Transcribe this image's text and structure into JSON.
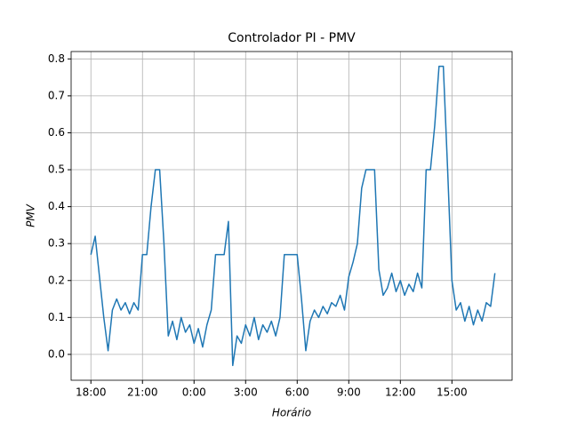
{
  "chart_data": {
    "type": "line",
    "title": "Controlador PI - PMV",
    "xlabel": "Horário",
    "ylabel": "PMV",
    "x": [
      0,
      0.25,
      0.5,
      0.75,
      1,
      1.25,
      1.5,
      1.75,
      2,
      2.25,
      2.5,
      2.75,
      3,
      3.25,
      3.5,
      3.75,
      4,
      4.25,
      4.5,
      4.75,
      5,
      5.25,
      5.5,
      5.75,
      6,
      6.25,
      6.5,
      6.75,
      7,
      7.25,
      7.5,
      7.75,
      8,
      8.25,
      8.5,
      8.75,
      9,
      9.25,
      9.5,
      9.75,
      10,
      10.25,
      10.5,
      10.75,
      11,
      11.25,
      11.5,
      11.75,
      12,
      12.25,
      12.5,
      12.75,
      13,
      13.25,
      13.5,
      13.75,
      14,
      14.25,
      14.5,
      14.75,
      15,
      15.25,
      15.5,
      15.75,
      16,
      16.25,
      16.5,
      16.75,
      17,
      17.25,
      17.5,
      17.75,
      18,
      18.25,
      18.5,
      18.75,
      19,
      19.25,
      19.5,
      19.75,
      20,
      20.25,
      20.5,
      20.75,
      21,
      21.25,
      21.5,
      21.75,
      22,
      22.25,
      22.5,
      22.75,
      23,
      23.25,
      23.5
    ],
    "series": [
      {
        "name": "PMV",
        "color": "#1f77b4",
        "values": [
          0.27,
          0.32,
          0.21,
          0.1,
          0.01,
          0.12,
          0.15,
          0.12,
          0.14,
          0.11,
          0.14,
          0.12,
          0.27,
          0.27,
          0.4,
          0.5,
          0.5,
          0.3,
          0.05,
          0.09,
          0.04,
          0.1,
          0.06,
          0.08,
          0.03,
          0.07,
          0.02,
          0.08,
          0.12,
          0.27,
          0.27,
          0.27,
          0.36,
          -0.03,
          0.05,
          0.03,
          0.08,
          0.05,
          0.1,
          0.04,
          0.08,
          0.06,
          0.09,
          0.05,
          0.1,
          0.27,
          0.27,
          0.27,
          0.27,
          0.15,
          0.01,
          0.09,
          0.12,
          0.1,
          0.13,
          0.11,
          0.14,
          0.13,
          0.16,
          0.12,
          0.21,
          0.25,
          0.3,
          0.45,
          0.5,
          0.5,
          0.5,
          0.23,
          0.16,
          0.18,
          0.22,
          0.17,
          0.2,
          0.16,
          0.19,
          0.17,
          0.22,
          0.18,
          0.5,
          0.5,
          0.62,
          0.78,
          0.78,
          0.5,
          0.2,
          0.12,
          0.14,
          0.09,
          0.13,
          0.08,
          0.12,
          0.09,
          0.14,
          0.13,
          0.22
        ]
      }
    ],
    "xlim": [
      -1.15,
      24.5
    ],
    "ylim": [
      -0.07,
      0.82
    ],
    "xticks": [
      {
        "value": 0,
        "label": "18:00"
      },
      {
        "value": 3,
        "label": "21:00"
      },
      {
        "value": 6,
        "label": "0:00"
      },
      {
        "value": 9,
        "label": "3:00"
      },
      {
        "value": 12,
        "label": "6:00"
      },
      {
        "value": 15,
        "label": "9:00"
      },
      {
        "value": 18,
        "label": "12:00"
      },
      {
        "value": 21,
        "label": "15:00"
      }
    ],
    "yticks": [
      {
        "value": 0,
        "label": "0.0"
      },
      0.1,
      0.2,
      0.3,
      0.4,
      0.5,
      0.6,
      0.7,
      0.8
    ],
    "grid": true
  }
}
